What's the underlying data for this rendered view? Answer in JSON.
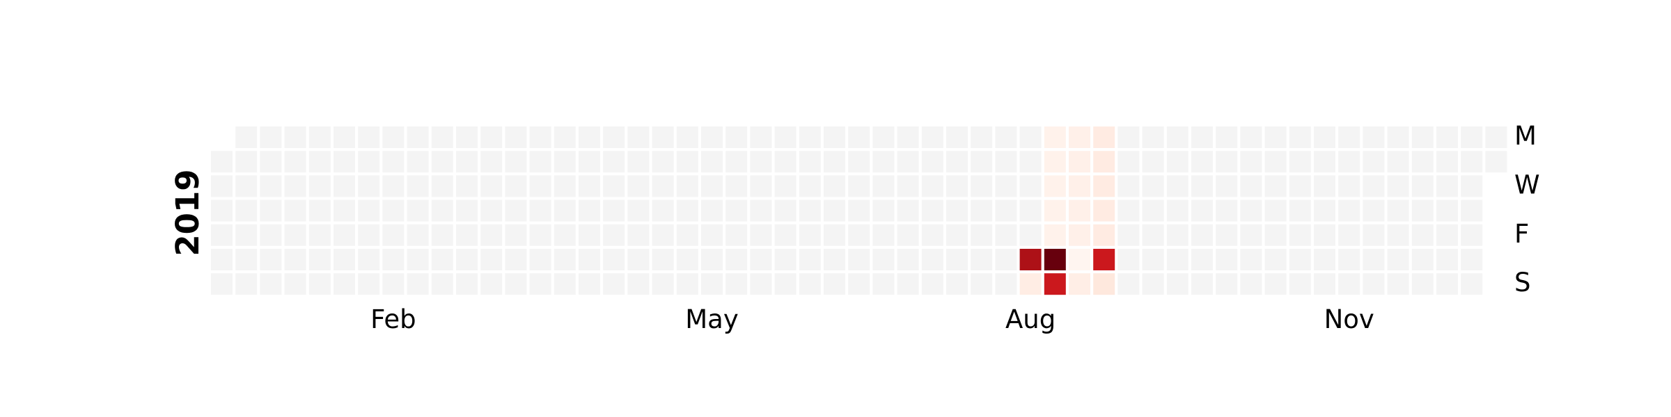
{
  "chart_data": {
    "type": "heatmap",
    "subtype": "calendar",
    "title": "",
    "year": "2019",
    "month_labels": [
      {
        "label": "Feb",
        "week": 7
      },
      {
        "label": "May",
        "week": 20
      },
      {
        "label": "Aug",
        "week": 33
      },
      {
        "label": "Nov",
        "week": 46
      }
    ],
    "day_labels": [
      {
        "label": "M",
        "day": 0
      },
      {
        "label": "W",
        "day": 2
      },
      {
        "label": "F",
        "day": 4
      },
      {
        "label": "S",
        "day": 6
      }
    ],
    "weeks": 53,
    "first_week_start_day": 1,
    "last_week_end_day": 1,
    "cmap": "Reds",
    "empty_color": "#f4f4f4",
    "vmax": 1.0,
    "values": [
      {
        "date": "2019-08-03",
        "week": 33,
        "day": 5,
        "value": 0.85
      },
      {
        "date": "2019-08-04",
        "week": 33,
        "day": 6,
        "value": 0.05
      },
      {
        "date": "2019-08-05",
        "week": 34,
        "day": 0,
        "value": 0.02
      },
      {
        "date": "2019-08-06",
        "week": 34,
        "day": 1,
        "value": 0.02
      },
      {
        "date": "2019-08-07",
        "week": 34,
        "day": 2,
        "value": 0.02
      },
      {
        "date": "2019-08-08",
        "week": 34,
        "day": 3,
        "value": 0.02
      },
      {
        "date": "2019-08-09",
        "week": 34,
        "day": 4,
        "value": 0.02
      },
      {
        "date": "2019-08-10",
        "week": 34,
        "day": 5,
        "value": 1.0
      },
      {
        "date": "2019-08-11",
        "week": 34,
        "day": 6,
        "value": 0.75
      },
      {
        "date": "2019-08-12",
        "week": 35,
        "day": 0,
        "value": 0.03
      },
      {
        "date": "2019-08-13",
        "week": 35,
        "day": 1,
        "value": 0.03
      },
      {
        "date": "2019-08-14",
        "week": 35,
        "day": 2,
        "value": 0.03
      },
      {
        "date": "2019-08-15",
        "week": 35,
        "day": 3,
        "value": 0.03
      },
      {
        "date": "2019-08-16",
        "week": 35,
        "day": 4,
        "value": 0.03
      },
      {
        "date": "2019-08-17",
        "week": 35,
        "day": 5,
        "value": 0.0
      },
      {
        "date": "2019-08-18",
        "week": 35,
        "day": 6,
        "value": 0.04
      },
      {
        "date": "2019-08-19",
        "week": 36,
        "day": 0,
        "value": 0.06
      },
      {
        "date": "2019-08-20",
        "week": 36,
        "day": 1,
        "value": 0.06
      },
      {
        "date": "2019-08-21",
        "week": 36,
        "day": 2,
        "value": 0.06
      },
      {
        "date": "2019-08-22",
        "week": 36,
        "day": 3,
        "value": 0.06
      },
      {
        "date": "2019-08-23",
        "week": 36,
        "day": 4,
        "value": 0.06
      },
      {
        "date": "2019-08-24",
        "week": 36,
        "day": 5,
        "value": 0.75
      },
      {
        "date": "2019-08-25",
        "week": 36,
        "day": 6,
        "value": 0.08
      }
    ]
  }
}
